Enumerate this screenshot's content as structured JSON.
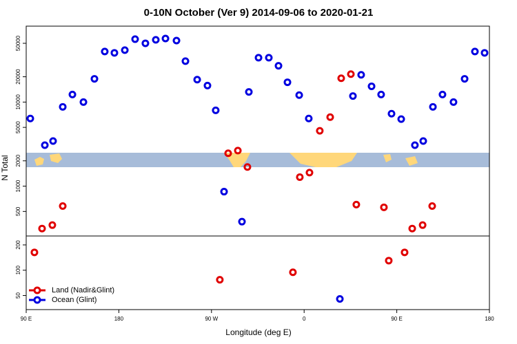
{
  "chart_data": {
    "type": "scatter",
    "title": "0-10N October (Ver 9)   2014-09-06 to 2020-01-21",
    "x_label": "Longitude (deg E)",
    "y_label": "N Total",
    "log_y": true,
    "legend": "lower left",
    "xlim": [
      90,
      540
    ],
    "xticks": [
      {
        "value": 90,
        "label": "90 E"
      },
      180,
      {
        "value": 270,
        "label": "90 W"
      },
      {
        "value": 360,
        "label": "0"
      },
      {
        "value": 450,
        "label": "90 E"
      },
      {
        "value": 540,
        "label": "180"
      }
    ],
    "ylim": [
      34,
      80000
    ],
    "yticks": [
      50,
      100,
      200,
      500,
      1000,
      2000,
      5000,
      10000,
      20000,
      50000
    ],
    "series": [
      {
        "name": "Land (Nadir&Glint)",
        "color": "#e00000",
        "x": [
          98.0,
          105.4,
          115.4,
          125.5,
          286.2,
          295.6,
          304.9,
          355.8,
          365.2,
          375.2,
          385.3,
          396.0,
          405.4,
          410.7,
          437.5,
          442.2,
          457.6,
          465.0,
          475.1,
          484.4,
          278.1,
          349.1
        ],
        "values": [
          163,
          313,
          344,
          580,
          2460,
          2650,
          1690,
          1280,
          1450,
          4550,
          6620,
          19200,
          21500,
          603,
          560,
          130,
          163,
          313,
          344,
          580,
          77,
          94.5
        ]
      },
      {
        "name": "Ocean (Glint)",
        "color": "#0000e0",
        "x": [
          94.0,
          108.1,
          116.1,
          125.5,
          134.9,
          145.6,
          156.3,
          166.3,
          175.7,
          185.8,
          195.8,
          205.8,
          215.9,
          225.3,
          236.0,
          244.7,
          256.1,
          266.1,
          274.1,
          282.2,
          299.6,
          306.3,
          315.7,
          325.7,
          335.1,
          343.8,
          355.2,
          364.5,
          407.4,
          415.4,
          425.5,
          434.8,
          444.9,
          454.3,
          467.6,
          475.7,
          485.1,
          494.4,
          505.1,
          515.9,
          525.9,
          535.3,
          394.7
        ],
        "values": [
          6380,
          3070,
          3440,
          8770,
          12300,
          10000,
          18900,
          39900,
          38500,
          41500,
          56000,
          50000,
          55000,
          57000,
          53900,
          30700,
          18500,
          15700,
          7980,
          860,
          378,
          13200,
          33700,
          33700,
          27000,
          17200,
          12100,
          6380,
          11800,
          21100,
          15400,
          12300,
          7280,
          6270,
          3070,
          3440,
          8770,
          12300,
          10000,
          18900,
          39900,
          38500,
          45.5
        ]
      }
    ]
  }
}
